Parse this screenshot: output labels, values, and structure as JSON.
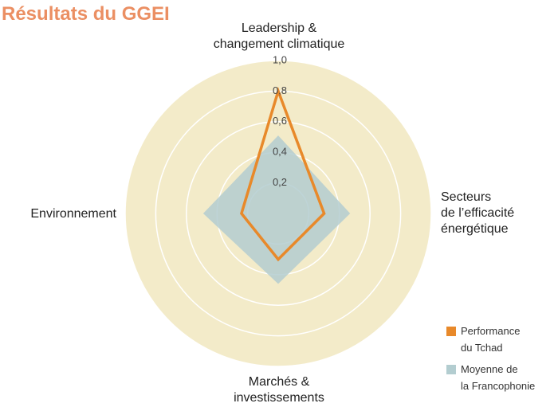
{
  "chart_data": {
    "type": "radar",
    "title": "Résultats du GGEI",
    "categories": [
      "Leadership &\nchangement climatique",
      "Secteurs\nde l’efficacité\nénergétique",
      "Marchés &\ninvestissements",
      "Environnement"
    ],
    "series": [
      {
        "name": "Performance\ndu Tchad",
        "color": "#e8892a",
        "values": [
          0.8,
          0.3,
          0.3,
          0.24
        ]
      },
      {
        "name": "Moyenne de\nla Francophonie",
        "color": "#b3cdd0",
        "values": [
          0.51,
          0.47,
          0.46,
          0.49
        ]
      }
    ],
    "ylim": [
      0,
      1
    ],
    "yticks": [
      {
        "value": 0.2,
        "label": "0,2"
      },
      {
        "value": 0.4,
        "label": "0,4"
      },
      {
        "value": 0.6,
        "label": "0,6"
      },
      {
        "value": 0.8,
        "label": "0,8"
      },
      {
        "value": 1.0,
        "label": "1,0"
      }
    ],
    "background": "#f3ebc9"
  }
}
